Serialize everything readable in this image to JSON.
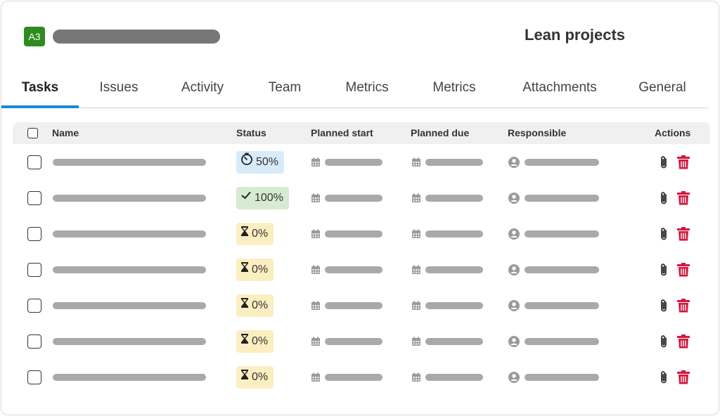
{
  "header": {
    "badge": "A3",
    "project_title": "Lean projects"
  },
  "tabs": [
    {
      "label": "Tasks",
      "active": true
    },
    {
      "label": "Issues"
    },
    {
      "label": "Activity"
    },
    {
      "label": "Team"
    },
    {
      "label": "Metrics"
    },
    {
      "label": "Metrics"
    },
    {
      "label": "Attachments"
    },
    {
      "label": "General"
    }
  ],
  "table": {
    "columns": {
      "name": "Name",
      "status": "Status",
      "planned_start": "Planned start",
      "planned_due": "Planned due",
      "responsible": "Responsible",
      "actions": "Actions"
    },
    "rows": [
      {
        "status": "50%",
        "status_kind": "in-progress"
      },
      {
        "status": "100%",
        "status_kind": "done"
      },
      {
        "status": "0%",
        "status_kind": "not-started"
      },
      {
        "status": "0%",
        "status_kind": "not-started"
      },
      {
        "status": "0%",
        "status_kind": "not-started"
      },
      {
        "status": "0%",
        "status_kind": "not-started"
      },
      {
        "status": "0%",
        "status_kind": "not-started"
      }
    ]
  },
  "colors": {
    "badge": "#2e8b1e",
    "active_tab_underline": "#1e88d4",
    "status_in_progress": "#d7ebfb",
    "status_done": "#d6ebd1",
    "status_not_started": "#fbeec0",
    "delete": "#d4163c"
  },
  "icons": {
    "in_progress": "timer-icon",
    "done": "check-icon",
    "not_started": "hourglass-icon",
    "date": "calendar-icon",
    "responsible": "user-icon",
    "attach": "paperclip-icon",
    "delete": "trash-icon"
  }
}
